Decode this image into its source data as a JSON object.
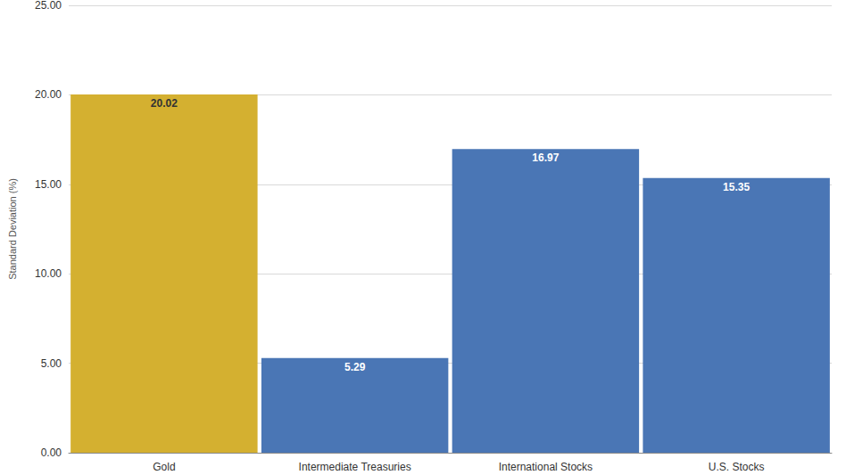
{
  "chart_data": {
    "type": "bar",
    "y_label": "Standard Deviation (%)",
    "categories": [
      "Gold",
      "Intermediate Treasuries",
      "International Stocks",
      "U.S. Stocks"
    ],
    "values": [
      20.02,
      5.29,
      16.97,
      15.35
    ],
    "colors": [
      "#d4b030",
      "#4a76b5",
      "#4a76b5",
      "#4a76b5"
    ],
    "ylim": [
      0,
      25
    ],
    "yticks": [
      {
        "value": 0,
        "label": "0.00"
      },
      {
        "value": 5,
        "label": "5.00"
      },
      {
        "value": 10,
        "label": "10.00"
      },
      {
        "value": 15,
        "label": "15.00"
      },
      {
        "value": 20,
        "label": "20.00"
      },
      {
        "value": 25,
        "label": "25.00"
      }
    ],
    "grid": true,
    "data_labels": true
  }
}
